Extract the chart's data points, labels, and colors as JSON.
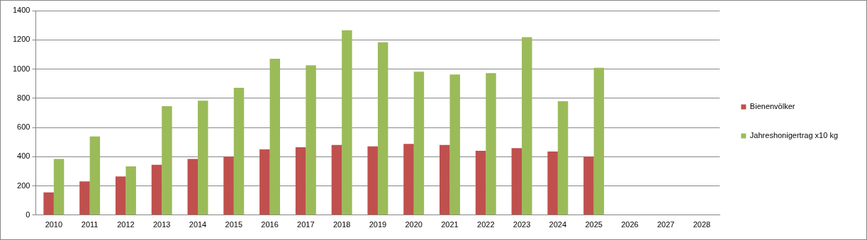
{
  "chart_data": {
    "type": "bar",
    "categories": [
      "2010",
      "2011",
      "2012",
      "2013",
      "2014",
      "2015",
      "2016",
      "2017",
      "2018",
      "2019",
      "2020",
      "2021",
      "2022",
      "2023",
      "2024",
      "2025",
      "2026",
      "2027",
      "2028"
    ],
    "series": [
      {
        "name": "Bienenvölker",
        "color": "#c0504d",
        "values": [
          155,
          230,
          265,
          345,
          385,
          400,
          450,
          465,
          480,
          470,
          487,
          480,
          440,
          458,
          435,
          400,
          null,
          null,
          null
        ]
      },
      {
        "name": "Jahreshonigertrag x10 kg",
        "color": "#9bbb59",
        "values": [
          385,
          538,
          333,
          745,
          783,
          872,
          1070,
          1025,
          1265,
          1183,
          982,
          962,
          972,
          1218,
          780,
          1008,
          null,
          null,
          null
        ]
      }
    ],
    "ylim": [
      0,
      1400
    ],
    "yticks": [
      0,
      200,
      400,
      600,
      800,
      1000,
      1200,
      1400
    ],
    "grid": "y",
    "legend": "right"
  }
}
